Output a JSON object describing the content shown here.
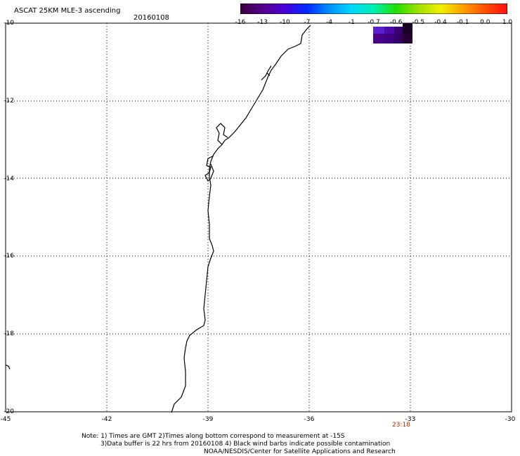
{
  "header": {
    "title": "ASCAT 25KM MLE-3 ascending",
    "date": "20160108"
  },
  "colorbar": {
    "colors": [
      "#3a0040",
      "#55008a",
      "#4a00d8",
      "#0028ff",
      "#0090ff",
      "#00d8ff",
      "#00f0b0",
      "#20e000",
      "#a0e000",
      "#f0f000",
      "#ffa000",
      "#ff5000",
      "#ff1010"
    ],
    "labels": [
      "-16",
      "-13",
      "-10",
      "-7",
      "-4",
      "-1",
      "-0.7",
      "-0.6",
      "-0.5",
      "-0.4",
      "-0.1",
      "0.0",
      "1.0"
    ]
  },
  "map": {
    "lat_ticks": [
      "-10",
      "-12",
      "-14",
      "-16",
      "-18",
      "-20"
    ],
    "lon_ticks": [
      "-45",
      "-42",
      "-39",
      "-36",
      "-33",
      "-30"
    ],
    "lat_range": [
      -20,
      -10
    ],
    "lon_range": [
      -45,
      -30
    ],
    "grid": "dotted",
    "time_label": "23:18",
    "time_color": "#cc2200"
  },
  "notes": {
    "line1": "Note: 1) Times are GMT 2)Times along bottom correspond to measurement at -15S",
    "line2": "3)Data buffer is 22 hrs from 20160108 4) Black wind barbs indicate possible contamination",
    "line3": "NOAA/NESDIS/Center for Satellite Applications and Research"
  }
}
